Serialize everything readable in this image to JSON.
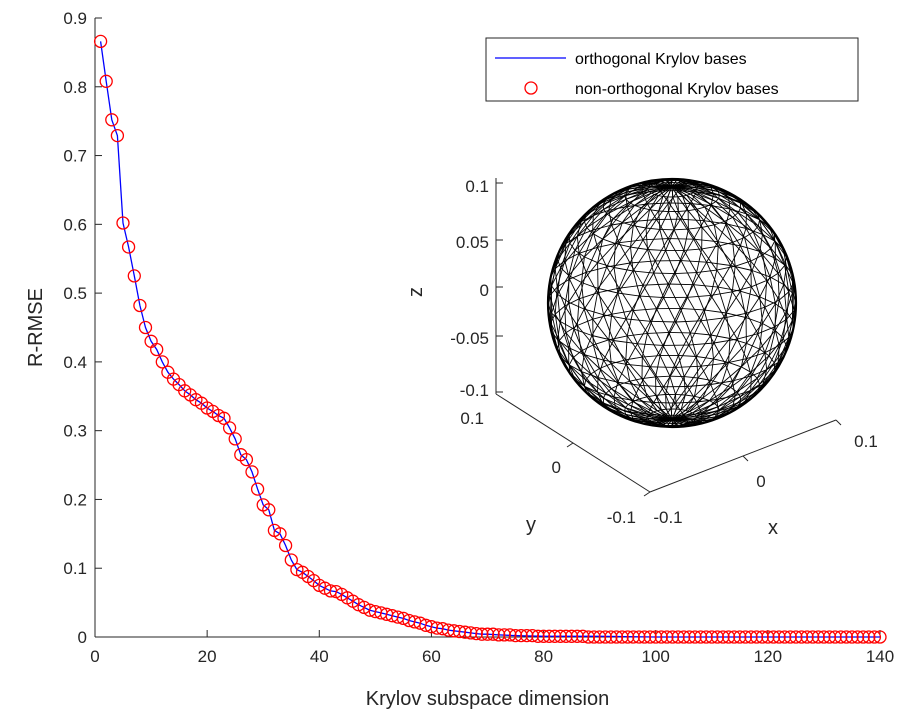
{
  "chart_data": [
    {
      "type": "line",
      "xlabel": "Krylov subspace dimension",
      "ylabel": "R-RMSE",
      "xlim": [
        0,
        140
      ],
      "ylim": [
        0,
        0.9
      ],
      "xticks": [
        0,
        20,
        40,
        60,
        80,
        100,
        120,
        140
      ],
      "yticks": [
        0,
        0.1,
        0.2,
        0.3,
        0.4,
        0.5,
        0.6,
        0.7,
        0.8,
        0.9
      ],
      "legend_position": "top-right",
      "series": [
        {
          "name": "orthogonal Krylov bases",
          "style": "solid-line",
          "color": "#0000ff",
          "x": [
            1,
            2,
            3,
            4,
            5,
            6,
            7,
            8,
            9,
            10,
            11,
            12,
            13,
            14,
            15,
            16,
            17,
            18,
            19,
            20,
            21,
            22,
            23,
            24,
            25,
            26,
            27,
            28,
            29,
            30,
            31,
            32,
            33,
            34,
            35,
            36,
            37,
            38,
            39,
            40,
            41,
            42,
            43,
            44,
            45,
            46,
            47,
            48,
            49,
            50,
            51,
            52,
            53,
            54,
            55,
            56,
            57,
            58,
            59,
            60,
            61,
            62,
            63,
            64,
            65,
            66,
            67,
            68,
            69,
            70,
            72,
            75,
            80,
            90,
            100,
            110,
            120,
            130,
            140
          ],
          "y": [
            0.866,
            0.808,
            0.752,
            0.729,
            0.602,
            0.567,
            0.525,
            0.482,
            0.45,
            0.43,
            0.418,
            0.4,
            0.385,
            0.375,
            0.367,
            0.358,
            0.352,
            0.345,
            0.34,
            0.333,
            0.328,
            0.322,
            0.318,
            0.304,
            0.288,
            0.265,
            0.258,
            0.24,
            0.215,
            0.192,
            0.185,
            0.155,
            0.15,
            0.133,
            0.112,
            0.098,
            0.094,
            0.088,
            0.082,
            0.075,
            0.071,
            0.067,
            0.066,
            0.062,
            0.057,
            0.052,
            0.047,
            0.043,
            0.039,
            0.037,
            0.035,
            0.033,
            0.031,
            0.029,
            0.027,
            0.024,
            0.022,
            0.02,
            0.017,
            0.015,
            0.013,
            0.012,
            0.01,
            0.009,
            0.008,
            0.007,
            0.006,
            0.005,
            0.004,
            0.004,
            0.003,
            0.002,
            0.001,
            0.001,
            0.0,
            0.0,
            0.0,
            0.0,
            0.0
          ]
        },
        {
          "name": "non-orthogonal Krylov bases",
          "style": "circle-markers",
          "color": "#ff0000",
          "x": [
            1,
            2,
            3,
            4,
            5,
            6,
            7,
            8,
            9,
            10,
            11,
            12,
            13,
            14,
            15,
            16,
            17,
            18,
            19,
            20,
            21,
            22,
            23,
            24,
            25,
            26,
            27,
            28,
            29,
            30,
            31,
            32,
            33,
            34,
            35,
            36,
            37,
            38,
            39,
            40,
            41,
            42,
            43,
            44,
            45,
            46,
            47,
            48,
            49,
            50,
            51,
            52,
            53,
            54,
            55,
            56,
            57,
            58,
            59,
            60,
            61,
            62,
            63,
            64,
            65,
            66,
            67,
            68,
            69,
            70,
            71,
            72,
            73,
            74,
            75,
            76,
            77,
            78,
            79,
            80,
            81,
            82,
            83,
            84,
            85,
            86,
            87,
            88,
            89,
            90,
            91,
            92,
            93,
            94,
            95,
            96,
            97,
            98,
            99,
            100,
            101,
            102,
            103,
            104,
            105,
            106,
            107,
            108,
            109,
            110,
            111,
            112,
            113,
            114,
            115,
            116,
            117,
            118,
            119,
            120,
            121,
            122,
            123,
            124,
            125,
            126,
            127,
            128,
            129,
            130,
            131,
            132,
            133,
            134,
            135,
            136,
            137,
            138,
            139,
            140
          ],
          "y": [
            0.866,
            0.808,
            0.752,
            0.729,
            0.602,
            0.567,
            0.525,
            0.482,
            0.45,
            0.43,
            0.418,
            0.4,
            0.385,
            0.375,
            0.367,
            0.358,
            0.352,
            0.345,
            0.34,
            0.333,
            0.328,
            0.322,
            0.318,
            0.304,
            0.288,
            0.265,
            0.258,
            0.24,
            0.215,
            0.192,
            0.185,
            0.155,
            0.15,
            0.133,
            0.112,
            0.098,
            0.094,
            0.088,
            0.082,
            0.075,
            0.071,
            0.067,
            0.066,
            0.062,
            0.057,
            0.052,
            0.047,
            0.043,
            0.039,
            0.037,
            0.035,
            0.033,
            0.031,
            0.029,
            0.027,
            0.024,
            0.022,
            0.02,
            0.017,
            0.015,
            0.013,
            0.012,
            0.01,
            0.009,
            0.008,
            0.007,
            0.006,
            0.005,
            0.004,
            0.004,
            0.004,
            0.003,
            0.003,
            0.003,
            0.002,
            0.002,
            0.002,
            0.002,
            0.001,
            0.001,
            0.001,
            0.001,
            0.001,
            0.001,
            0.001,
            0.001,
            0.001,
            0.0,
            0.0,
            0.0,
            0.0,
            0.0,
            0.0,
            0.0,
            0.0,
            0.0,
            0.0,
            0.0,
            0.0,
            0.0,
            0.0,
            0.0,
            0.0,
            0.0,
            0.0,
            0.0,
            0.0,
            0.0,
            0.0,
            0.0,
            0.0,
            0.0,
            0.0,
            0.0,
            0.0,
            0.0,
            0.0,
            0.0,
            0.0,
            0.0,
            0.0,
            0.0,
            0.0,
            0.0,
            0.0,
            0.0,
            0.0,
            0.0,
            0.0,
            0.0,
            0.0,
            0.0,
            0.0,
            0.0,
            0.0,
            0.0,
            0.0,
            0.0,
            0.0,
            0.0
          ]
        }
      ]
    },
    {
      "type": "3d-wireframe",
      "shape": "sphere mesh",
      "color": "#000000",
      "xlabel": "x",
      "ylabel": "y",
      "zlabel": "z",
      "xlim": [
        -0.1,
        0.1
      ],
      "ylim": [
        -0.1,
        0.1
      ],
      "zlim": [
        -0.1,
        0.1
      ],
      "xticks": [
        "-0.1",
        "0",
        "0.1"
      ],
      "yticks": [
        "-0.1",
        "0",
        "0.1"
      ],
      "zticks": [
        "-0.1",
        "-0.05",
        "0",
        "0.05",
        "0.1"
      ]
    }
  ]
}
